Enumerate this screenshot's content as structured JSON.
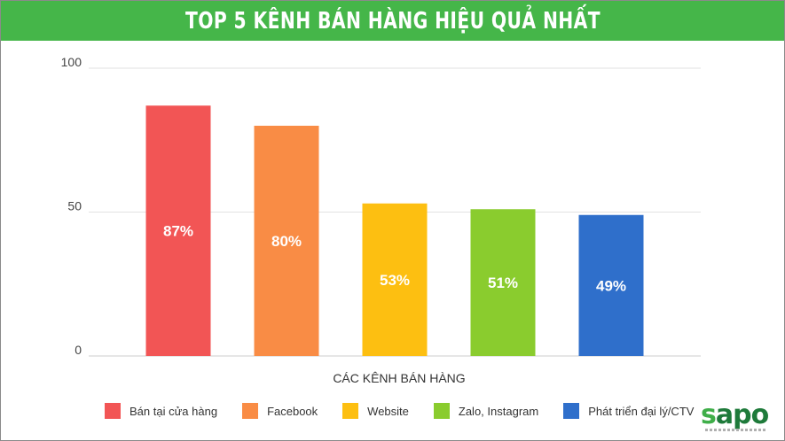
{
  "header": {
    "title": "TOP 5 KÊNH BÁN HÀNG HIỆU QUẢ NHẤT",
    "color": "#45b649"
  },
  "chart_data": {
    "type": "bar",
    "title": "TOP 5 KÊNH BÁN HÀNG HIỆU QUẢ NHẤT",
    "xlabel": "CÁC KÊNH BÁN HÀNG",
    "ylabel": "",
    "ylim": [
      0,
      100
    ],
    "yticks": [
      "0",
      "50",
      "100"
    ],
    "categories": [
      "Bán tại cửa hàng",
      "Facebook",
      "Website",
      "Zalo, Instagram",
      "Phát triển đại lý/CTV"
    ],
    "values": [
      87,
      80,
      53,
      51,
      49
    ],
    "data_labels": [
      "87%",
      "80%",
      "53%",
      "51%",
      "49%"
    ],
    "colors": [
      "#f25555",
      "#f98c45",
      "#fdbf11",
      "#8acc2e",
      "#2f6fcb"
    ],
    "grid": true,
    "legend": "bottom"
  },
  "logo": {
    "text_s": "s",
    "text_rest": "apo"
  }
}
